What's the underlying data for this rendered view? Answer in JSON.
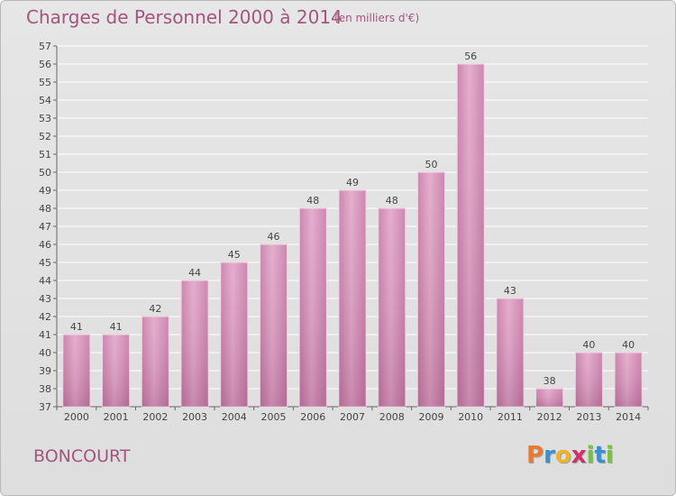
{
  "header": {
    "title": "Charges de Personnel 2000 à 2014",
    "subtitle": "(en milliers d'€)"
  },
  "footer": {
    "commune": "BONCOURT",
    "brand_letters": [
      "P",
      "r",
      "o",
      "x",
      "i",
      "t",
      "i"
    ],
    "brand_colors": [
      "#e8792f",
      "#3a8fd1",
      "#f2b227",
      "#d12f6a",
      "#7cc043",
      "#3a8fd1",
      "#7cc043"
    ]
  },
  "colors": {
    "bar_fill": "#d58cb5",
    "bar_fill_light": "#e8aacf",
    "accent": "#a2567e"
  },
  "chart_data": {
    "type": "bar",
    "title": "Charges de Personnel 2000 à 2014",
    "subtitle": "(en milliers d'€)",
    "categories": [
      "2000",
      "2001",
      "2002",
      "2003",
      "2004",
      "2005",
      "2006",
      "2007",
      "2008",
      "2009",
      "2010",
      "2011",
      "2012",
      "2013",
      "2014"
    ],
    "values": [
      41,
      41,
      42,
      44,
      45,
      46,
      48,
      49,
      48,
      50,
      56,
      43,
      38,
      40,
      40
    ],
    "ylim": [
      37,
      57
    ],
    "yticks": [
      37,
      38,
      39,
      40,
      41,
      42,
      43,
      44,
      45,
      46,
      47,
      48,
      49,
      50,
      51,
      52,
      53,
      54,
      55,
      56,
      57
    ],
    "grid": true,
    "xlabel": "",
    "ylabel": ""
  }
}
